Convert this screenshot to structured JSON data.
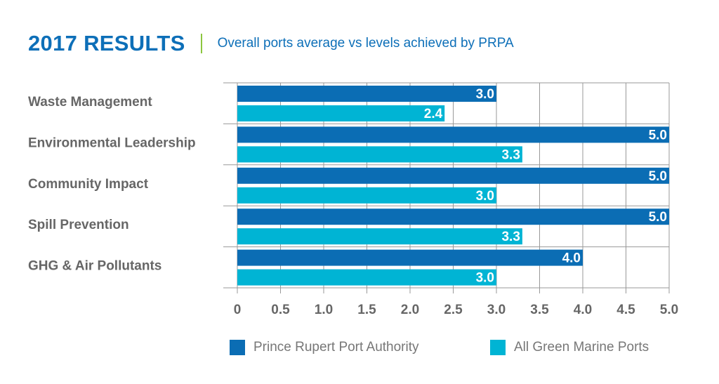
{
  "header": {
    "title": "2017 RESULTS",
    "subtitle": "Overall ports average vs levels achieved by PRPA"
  },
  "colors": {
    "title": "#0d6fb8",
    "subtitle": "#0d6fb8",
    "divider": "#8cc63f",
    "category_text": "#666666",
    "tick_text": "#666666",
    "grid": "#999999",
    "value_text": "#ffffff"
  },
  "chart_data": {
    "type": "bar",
    "orientation": "horizontal",
    "categories": [
      "Waste Management",
      "Environmental Leadership",
      "Community Impact",
      "Spill Prevention",
      "GHG & Air Pollutants"
    ],
    "series": [
      {
        "name": "Prince Rupert Port Authority",
        "color": "#0b6db4",
        "values": [
          3.0,
          5.0,
          5.0,
          5.0,
          4.0
        ],
        "labels": [
          "3.0",
          "5.0",
          "5.0",
          "5.0",
          "4.0"
        ]
      },
      {
        "name": "All Green Marine Ports",
        "color": "#00b4d4",
        "values": [
          2.4,
          3.3,
          3.0,
          3.3,
          3.0
        ],
        "labels": [
          "2.4",
          "3.3",
          "3.0",
          "3.3",
          "3.0"
        ]
      }
    ],
    "xlim": [
      0,
      5
    ],
    "ticks": [
      0,
      0.5,
      1.0,
      1.5,
      2.0,
      2.5,
      3.0,
      3.5,
      4.0,
      4.5,
      5.0
    ],
    "tick_labels": [
      "0",
      "0.5",
      "1.0",
      "1.5",
      "2.0",
      "2.5",
      "3.0",
      "3.5",
      "4.0",
      "4.5",
      "5.0"
    ],
    "grid": true,
    "legend_position": "bottom"
  }
}
